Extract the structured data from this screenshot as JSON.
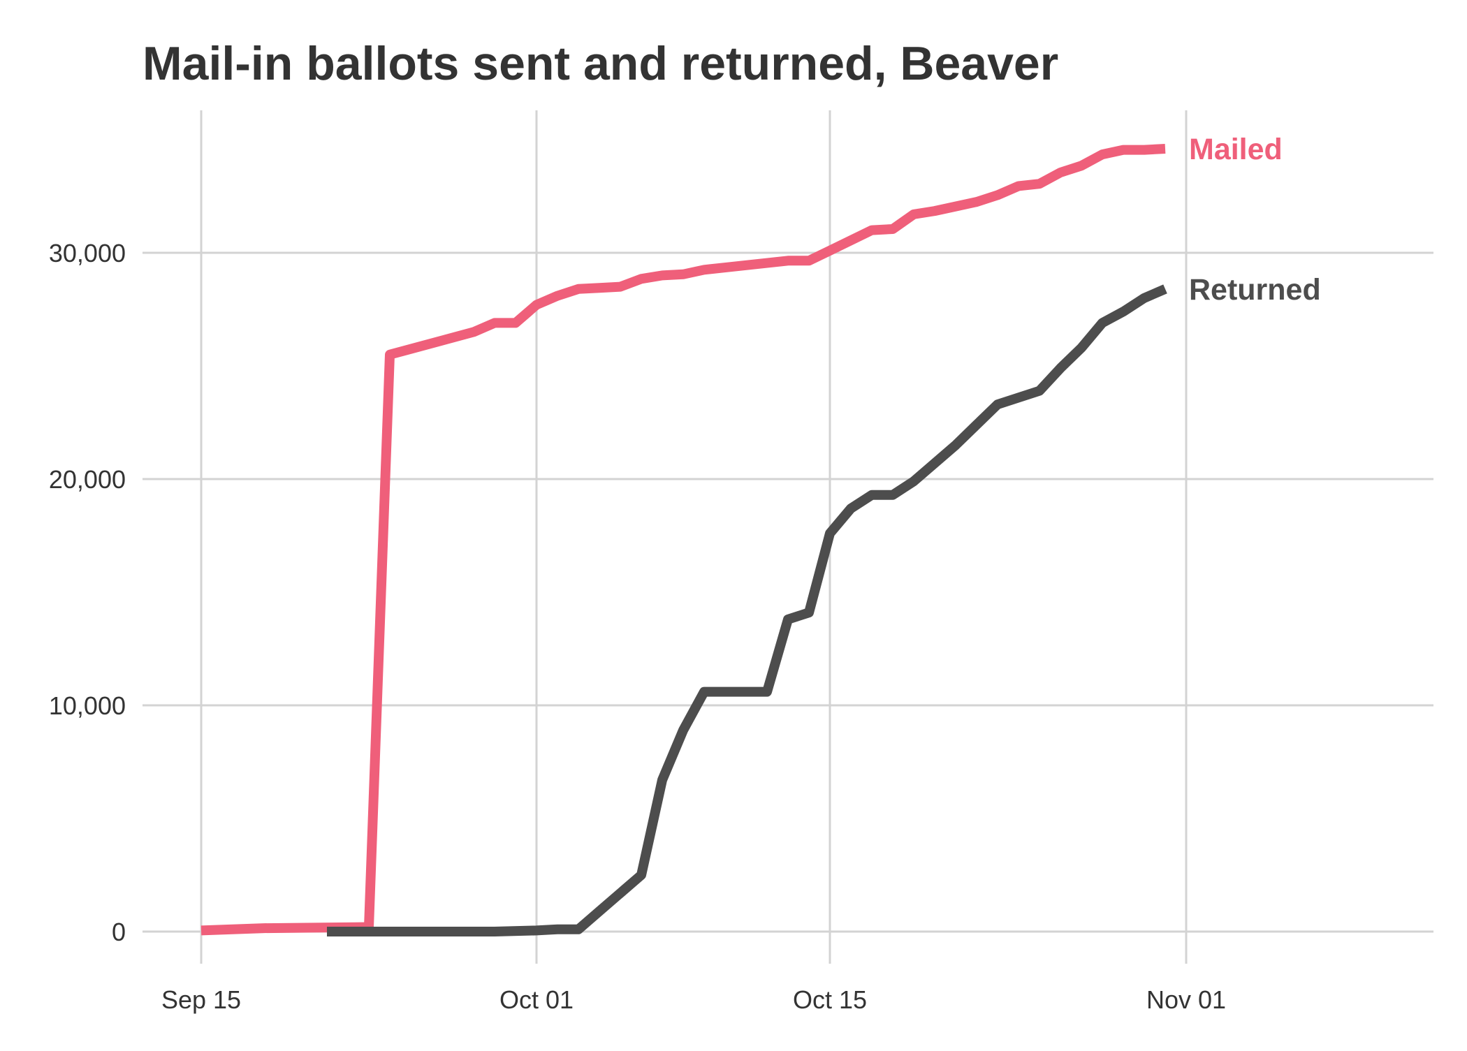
{
  "chart_data": {
    "type": "line",
    "title": "Mail-in ballots sent and returned, Beaver",
    "xlabel": "",
    "ylabel": "",
    "x_axis": {
      "type": "date",
      "range": [
        "2020-09-15",
        "2020-11-08"
      ],
      "ticks": [
        {
          "value": "2020-09-15",
          "label": "Sep 15"
        },
        {
          "value": "2020-10-01",
          "label": "Oct 01"
        },
        {
          "value": "2020-10-15",
          "label": "Oct 15"
        },
        {
          "value": "2020-11-01",
          "label": "Nov 01"
        }
      ]
    },
    "y_axis": {
      "range": [
        -1000,
        36500
      ],
      "ticks": [
        {
          "value": 0,
          "label": "0"
        },
        {
          "value": 10000,
          "label": "10,000"
        },
        {
          "value": 20000,
          "label": "20,000"
        },
        {
          "value": 30000,
          "label": "30,000"
        }
      ]
    },
    "grid": true,
    "legend": "direct labels at line ends",
    "series": [
      {
        "name": "Mailed",
        "color": "#ef5f7a",
        "points": [
          [
            "2020-09-15",
            50
          ],
          [
            "2020-09-18",
            150
          ],
          [
            "2020-09-23",
            200
          ],
          [
            "2020-09-24",
            25500
          ],
          [
            "2020-09-28",
            26500
          ],
          [
            "2020-09-29",
            26900
          ],
          [
            "2020-09-30",
            26900
          ],
          [
            "2020-10-01",
            27700
          ],
          [
            "2020-10-02",
            28100
          ],
          [
            "2020-10-03",
            28400
          ],
          [
            "2020-10-04",
            28450
          ],
          [
            "2020-10-05",
            28500
          ],
          [
            "2020-10-06",
            28850
          ],
          [
            "2020-10-07",
            29000
          ],
          [
            "2020-10-08",
            29050
          ],
          [
            "2020-10-09",
            29250
          ],
          [
            "2020-10-10",
            29350
          ],
          [
            "2020-10-11",
            29450
          ],
          [
            "2020-10-12",
            29550
          ],
          [
            "2020-10-13",
            29650
          ],
          [
            "2020-10-14",
            29650
          ],
          [
            "2020-10-15",
            30100
          ],
          [
            "2020-10-16",
            30550
          ],
          [
            "2020-10-17",
            31000
          ],
          [
            "2020-10-18",
            31050
          ],
          [
            "2020-10-19",
            31700
          ],
          [
            "2020-10-20",
            31850
          ],
          [
            "2020-10-21",
            32050
          ],
          [
            "2020-10-22",
            32250
          ],
          [
            "2020-10-23",
            32550
          ],
          [
            "2020-10-24",
            32950
          ],
          [
            "2020-10-25",
            33050
          ],
          [
            "2020-10-26",
            33550
          ],
          [
            "2020-10-27",
            33850
          ],
          [
            "2020-10-28",
            34350
          ],
          [
            "2020-10-29",
            34550
          ],
          [
            "2020-10-30",
            34550
          ],
          [
            "2020-10-31",
            34600
          ]
        ]
      },
      {
        "name": "Returned",
        "color": "#4d4d4d",
        "points": [
          [
            "2020-09-21",
            0
          ],
          [
            "2020-09-29",
            0
          ],
          [
            "2020-10-01",
            50
          ],
          [
            "2020-10-02",
            100
          ],
          [
            "2020-10-03",
            100
          ],
          [
            "2020-10-04",
            900
          ],
          [
            "2020-10-05",
            1700
          ],
          [
            "2020-10-06",
            2500
          ],
          [
            "2020-10-07",
            6700
          ],
          [
            "2020-10-08",
            8900
          ],
          [
            "2020-10-09",
            10600
          ],
          [
            "2020-10-10",
            10600
          ],
          [
            "2020-10-11",
            10600
          ],
          [
            "2020-10-12",
            10600
          ],
          [
            "2020-10-13",
            13800
          ],
          [
            "2020-10-14",
            14100
          ],
          [
            "2020-10-15",
            17600
          ],
          [
            "2020-10-16",
            18700
          ],
          [
            "2020-10-17",
            19300
          ],
          [
            "2020-10-18",
            19300
          ],
          [
            "2020-10-19",
            19900
          ],
          [
            "2020-10-20",
            20700
          ],
          [
            "2020-10-21",
            21500
          ],
          [
            "2020-10-22",
            22400
          ],
          [
            "2020-10-23",
            23300
          ],
          [
            "2020-10-24",
            23600
          ],
          [
            "2020-10-25",
            23900
          ],
          [
            "2020-10-26",
            24900
          ],
          [
            "2020-10-27",
            25800
          ],
          [
            "2020-10-28",
            26900
          ],
          [
            "2020-10-29",
            27400
          ],
          [
            "2020-10-30",
            28000
          ],
          [
            "2020-10-31",
            28400
          ]
        ]
      }
    ]
  }
}
